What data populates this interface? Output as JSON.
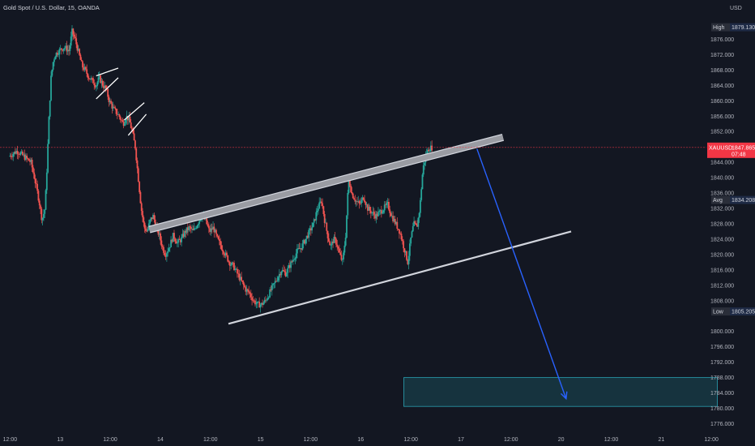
{
  "header": {
    "title": "Gold Spot / U.S. Dollar, 15, OANDA",
    "currency": "USD"
  },
  "colors": {
    "background": "#131722",
    "up": "#26a69a",
    "down": "#ef5350",
    "text": "#b2b5be",
    "label_bg": "#2a2e39",
    "price_line": "#f23645",
    "arrow": "#2962ff",
    "target_box": "#1a4a55"
  },
  "chart_data": {
    "type": "candlestick",
    "symbol": "XAUUSD",
    "interval": "15",
    "ylim": [
      1774,
      1882
    ],
    "y_ticks": [
      "1876.000",
      "1872.000",
      "1868.000",
      "1864.000",
      "1860.000",
      "1856.000",
      "1852.000",
      "1844.000",
      "1840.000",
      "1836.000",
      "1832.000",
      "1828.000",
      "1824.000",
      "1820.000",
      "1816.000",
      "1812.000",
      "1808.000",
      "1800.000",
      "1796.000",
      "1792.000",
      "1788.000",
      "1784.000",
      "1780.000",
      "1776.000"
    ],
    "x_ticks": [
      "12:00",
      "13",
      "12:00",
      "14",
      "12:00",
      "15",
      "12:00",
      "16",
      "12:00",
      "17",
      "12:00",
      "20",
      "12:00",
      "21",
      "12:00"
    ],
    "x_tick_positions": [
      0,
      0.5,
      1,
      1.5,
      2,
      2.5,
      3,
      3.5,
      4,
      4.5,
      5,
      5.5,
      6,
      6.5,
      7
    ],
    "x_range": [
      -0.1,
      6.95
    ],
    "price_labels": [
      {
        "name": "High",
        "value": "1879.130"
      },
      {
        "name": "XAUUSD",
        "value": "1847.865",
        "sub": "07:48"
      },
      {
        "name": "Avg",
        "value": "1834.208"
      },
      {
        "name": "Low",
        "value": "1805.205"
      }
    ],
    "price_path": [
      [
        0.0,
        1845.5
      ],
      [
        0.08,
        1847
      ],
      [
        0.15,
        1845.5
      ],
      [
        0.22,
        1844
      ],
      [
        0.27,
        1838
      ],
      [
        0.3,
        1834
      ],
      [
        0.33,
        1829
      ],
      [
        0.36,
        1832
      ],
      [
        0.38,
        1843
      ],
      [
        0.4,
        1856
      ],
      [
        0.42,
        1866
      ],
      [
        0.44,
        1870
      ],
      [
        0.46,
        1872
      ],
      [
        0.5,
        1873
      ],
      [
        0.55,
        1874
      ],
      [
        0.6,
        1873
      ],
      [
        0.63,
        1878
      ],
      [
        0.66,
        1876
      ],
      [
        0.7,
        1872
      ],
      [
        0.73,
        1869
      ],
      [
        0.76,
        1868
      ],
      [
        0.8,
        1866
      ],
      [
        0.84,
        1865
      ],
      [
        0.87,
        1864
      ],
      [
        0.9,
        1866
      ],
      [
        0.94,
        1864
      ],
      [
        0.97,
        1863
      ],
      [
        1.0,
        1860
      ],
      [
        1.04,
        1858
      ],
      [
        1.07,
        1857
      ],
      [
        1.1,
        1856
      ],
      [
        1.14,
        1854
      ],
      [
        1.17,
        1856
      ],
      [
        1.2,
        1855
      ],
      [
        1.23,
        1852
      ],
      [
        1.26,
        1848
      ],
      [
        1.29,
        1840
      ],
      [
        1.32,
        1832
      ],
      [
        1.35,
        1827
      ],
      [
        1.38,
        1826
      ],
      [
        1.41,
        1829
      ],
      [
        1.44,
        1830
      ],
      [
        1.47,
        1827
      ],
      [
        1.5,
        1825
      ],
      [
        1.53,
        1822
      ],
      [
        1.56,
        1820
      ],
      [
        1.6,
        1822
      ],
      [
        1.64,
        1825
      ],
      [
        1.68,
        1823
      ],
      [
        1.72,
        1824
      ],
      [
        1.76,
        1826
      ],
      [
        1.8,
        1827
      ],
      [
        1.84,
        1826
      ],
      [
        1.88,
        1828
      ],
      [
        1.92,
        1830
      ],
      [
        1.96,
        1829
      ],
      [
        2.0,
        1826
      ],
      [
        2.04,
        1827
      ],
      [
        2.08,
        1824
      ],
      [
        2.12,
        1822
      ],
      [
        2.16,
        1820
      ],
      [
        2.2,
        1818
      ],
      [
        2.24,
        1817
      ],
      [
        2.28,
        1815
      ],
      [
        2.32,
        1813
      ],
      [
        2.36,
        1811
      ],
      [
        2.4,
        1810
      ],
      [
        2.44,
        1808
      ],
      [
        2.48,
        1807
      ],
      [
        2.52,
        1807
      ],
      [
        2.56,
        1808
      ],
      [
        2.6,
        1810
      ],
      [
        2.64,
        1812
      ],
      [
        2.68,
        1814
      ],
      [
        2.72,
        1816
      ],
      [
        2.76,
        1815
      ],
      [
        2.8,
        1817
      ],
      [
        2.84,
        1819
      ],
      [
        2.88,
        1821
      ],
      [
        2.92,
        1822
      ],
      [
        2.96,
        1824
      ],
      [
        3.0,
        1826
      ],
      [
        3.04,
        1828
      ],
      [
        3.08,
        1832
      ],
      [
        3.12,
        1834
      ],
      [
        3.15,
        1829
      ],
      [
        3.18,
        1825
      ],
      [
        3.21,
        1822
      ],
      [
        3.24,
        1824
      ],
      [
        3.27,
        1823
      ],
      [
        3.3,
        1820
      ],
      [
        3.33,
        1818
      ],
      [
        3.36,
        1825
      ],
      [
        3.39,
        1840
      ],
      [
        3.42,
        1836
      ],
      [
        3.46,
        1834
      ],
      [
        3.5,
        1833
      ],
      [
        3.54,
        1835
      ],
      [
        3.58,
        1832
      ],
      [
        3.62,
        1831
      ],
      [
        3.66,
        1830
      ],
      [
        3.7,
        1831
      ],
      [
        3.74,
        1832
      ],
      [
        3.78,
        1833
      ],
      [
        3.82,
        1830
      ],
      [
        3.86,
        1828
      ],
      [
        3.9,
        1826
      ],
      [
        3.94,
        1822
      ],
      [
        3.98,
        1818
      ],
      [
        4.01,
        1824
      ],
      [
        4.04,
        1828
      ],
      [
        4.07,
        1827
      ],
      [
        4.1,
        1832
      ],
      [
        4.13,
        1842
      ],
      [
        4.16,
        1846
      ],
      [
        4.19,
        1847.5
      ],
      [
        4.22,
        1847.865
      ]
    ],
    "annotations": {
      "channel_upper_thick": [
        [
          1.39,
          1826.5
        ],
        [
          4.92,
          1850.5
        ]
      ],
      "channel_lower": [
        [
          2.18,
          1802
        ],
        [
          5.6,
          1826
        ]
      ],
      "flag_1_top": [
        [
          0.86,
          1866.5
        ],
        [
          1.08,
          1868.5
        ]
      ],
      "flag_1_bottom": [
        [
          0.86,
          1860.5
        ],
        [
          1.08,
          1866.0
        ]
      ],
      "flag_2_top": [
        [
          1.14,
          1855.0
        ],
        [
          1.34,
          1859.5
        ]
      ],
      "flag_2_bottom": [
        [
          1.18,
          1851.0
        ],
        [
          1.36,
          1856.5
        ]
      ],
      "arrow": [
        [
          4.66,
          1847.5
        ],
        [
          5.55,
          1782.5
        ]
      ],
      "target_box": {
        "x": [
          3.93,
          7.06
        ],
        "y": [
          1780.5,
          1788.0
        ]
      }
    }
  }
}
